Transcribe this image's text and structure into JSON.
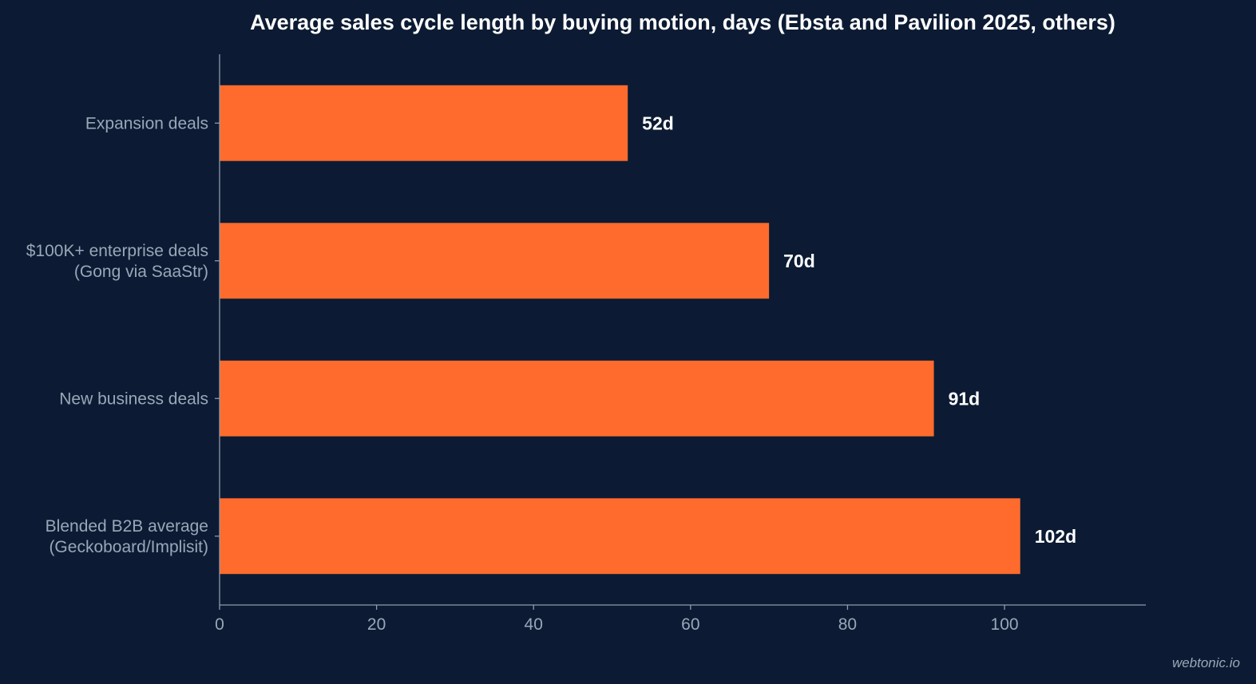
{
  "chart_data": {
    "type": "bar",
    "orientation": "horizontal",
    "title": "Average sales cycle length by buying motion, days (Ebsta and Pavilion 2025, others)",
    "categories": [
      [
        "Expansion deals"
      ],
      [
        "$100K+ enterprise deals",
        "(Gong via SaaStr)"
      ],
      [
        "New business deals"
      ],
      [
        "Blended B2B average",
        "(Geckoboard/Implisit)"
      ]
    ],
    "values": [
      52,
      70,
      91,
      102
    ],
    "value_labels": [
      "52d",
      "70d",
      "91d",
      "102d"
    ],
    "xlim": [
      0,
      118
    ],
    "xticks": [
      0,
      20,
      40,
      60,
      80,
      100
    ],
    "xlabel": "",
    "ylabel": "",
    "grid": false,
    "bar_color": "#ff6b2c",
    "background_color": "#0c1b33"
  },
  "watermark": "webtonic.io"
}
